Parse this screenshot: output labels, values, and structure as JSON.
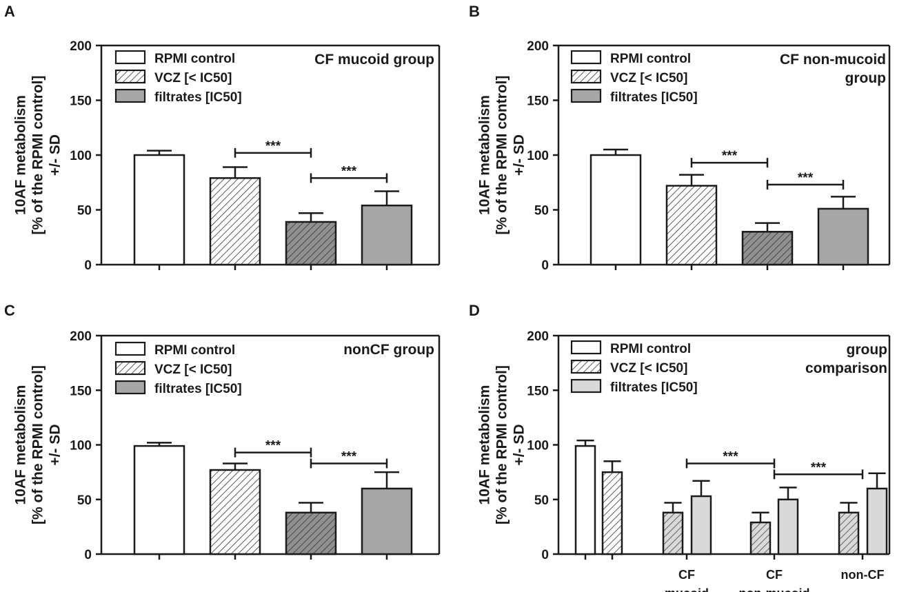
{
  "chart_data": [
    {
      "panel": "A",
      "type": "bar",
      "title": [
        "CF mucoid group"
      ],
      "ylabel": [
        "10AF metabolism",
        "[% of the RPMI control]",
        "+/- SD"
      ],
      "ylim": [
        0,
        200
      ],
      "yticks": [
        0,
        50,
        100,
        150,
        200
      ],
      "legend": [
        {
          "label": "RPMI control",
          "style": "white"
        },
        {
          "label": "VCZ [< IC50]",
          "style": "hatch-light"
        },
        {
          "label": "filtrates [IC50]",
          "style": "gray"
        }
      ],
      "bars": [
        {
          "value": 100,
          "sd": 4,
          "style": "white"
        },
        {
          "value": 79,
          "sd": 10,
          "style": "hatch-light"
        },
        {
          "value": 39,
          "sd": 8,
          "style": "hatch-dark"
        },
        {
          "value": 54,
          "sd": 13,
          "style": "gray"
        }
      ],
      "brackets": [
        {
          "from": 1,
          "to": 2,
          "y": 102,
          "label": "***"
        },
        {
          "from": 2,
          "to": 3,
          "y": 79,
          "label": "***"
        }
      ]
    },
    {
      "panel": "B",
      "type": "bar",
      "title": [
        "CF non-mucoid",
        "group"
      ],
      "ylabel": [
        "10AF metabolism",
        "[% of the RPMI control]",
        "+/- SD"
      ],
      "ylim": [
        0,
        200
      ],
      "yticks": [
        0,
        50,
        100,
        150,
        200
      ],
      "legend": [
        {
          "label": "RPMI control",
          "style": "white"
        },
        {
          "label": "VCZ [< IC50]",
          "style": "hatch-light"
        },
        {
          "label": "filtrates [IC50]",
          "style": "gray"
        }
      ],
      "bars": [
        {
          "value": 100,
          "sd": 5,
          "style": "white"
        },
        {
          "value": 72,
          "sd": 10,
          "style": "hatch-light"
        },
        {
          "value": 30,
          "sd": 8,
          "style": "hatch-dark"
        },
        {
          "value": 51,
          "sd": 11,
          "style": "gray"
        }
      ],
      "brackets": [
        {
          "from": 1,
          "to": 2,
          "y": 93,
          "label": "***"
        },
        {
          "from": 2,
          "to": 3,
          "y": 73,
          "label": "***"
        }
      ]
    },
    {
      "panel": "C",
      "type": "bar",
      "title": [
        "nonCF group"
      ],
      "ylabel": [
        "10AF metabolism",
        "[% of the RPMI control]",
        "+/- SD"
      ],
      "ylim": [
        0,
        200
      ],
      "yticks": [
        0,
        50,
        100,
        150,
        200
      ],
      "legend": [
        {
          "label": "RPMI control",
          "style": "white"
        },
        {
          "label": "VCZ [< IC50]",
          "style": "hatch-light"
        },
        {
          "label": "filtrates [IC50]",
          "style": "gray"
        }
      ],
      "bars": [
        {
          "value": 99,
          "sd": 3,
          "style": "white"
        },
        {
          "value": 77,
          "sd": 6,
          "style": "hatch-light"
        },
        {
          "value": 38,
          "sd": 9,
          "style": "hatch-dark"
        },
        {
          "value": 60,
          "sd": 15,
          "style": "gray"
        }
      ],
      "brackets": [
        {
          "from": 1,
          "to": 2,
          "y": 93,
          "label": "***"
        },
        {
          "from": 2,
          "to": 3,
          "y": 83,
          "label": "***"
        }
      ]
    },
    {
      "panel": "D",
      "type": "bar",
      "title": [
        "group",
        "comparison"
      ],
      "ylabel": [
        "10AF metabolism",
        "[% of the RPMI control]",
        "+/- SD"
      ],
      "ylim": [
        0,
        200
      ],
      "yticks": [
        0,
        50,
        100,
        150,
        200
      ],
      "legend": [
        {
          "label": "RPMI control",
          "style": "white"
        },
        {
          "label": "VCZ [< IC50]",
          "style": "hatch-light"
        },
        {
          "label": "filtrates [IC50]",
          "style": "lightgray"
        }
      ],
      "bars": [
        {
          "value": 99,
          "sd": 5,
          "style": "white"
        },
        {
          "value": 75,
          "sd": 10,
          "style": "hatch-light"
        },
        {
          "value": 38,
          "sd": 9,
          "style": "hatch-light2"
        },
        {
          "value": 53,
          "sd": 14,
          "style": "lightgray"
        },
        {
          "value": 29,
          "sd": 9,
          "style": "hatch-light2"
        },
        {
          "value": 50,
          "sd": 11,
          "style": "lightgray"
        },
        {
          "value": 38,
          "sd": 9,
          "style": "hatch-light2"
        },
        {
          "value": 60,
          "sd": 14,
          "style": "lightgray"
        }
      ],
      "categories": [
        {
          "lines": [
            "CF",
            "mucoid"
          ],
          "bars": [
            2,
            3
          ]
        },
        {
          "lines": [
            "CF",
            "non-mucoid"
          ],
          "bars": [
            4,
            5
          ]
        },
        {
          "lines": [
            "non-CF"
          ],
          "bars": [
            6,
            7
          ]
        }
      ],
      "brackets": [
        {
          "fromCat": 0,
          "toCat": 1,
          "y": 83,
          "label": "***"
        },
        {
          "fromCat": 1,
          "toCat": 2,
          "y": 73,
          "label": "***"
        }
      ]
    }
  ]
}
